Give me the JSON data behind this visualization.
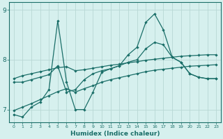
{
  "xlabel": "Humidex (Indice chaleur)",
  "bg_color": "#d6f0ee",
  "grid_color": "#b8d8d4",
  "line_color": "#1a6e68",
  "xlim": [
    -0.5,
    23.5
  ],
  "ylim": [
    6.75,
    9.15
  ],
  "yticks": [
    7,
    8,
    9
  ],
  "xticks": [
    0,
    1,
    2,
    3,
    4,
    5,
    6,
    7,
    8,
    9,
    10,
    11,
    12,
    13,
    14,
    15,
    16,
    17,
    18,
    19,
    20,
    21,
    22,
    23
  ],
  "series": [
    {
      "x": [
        0,
        1,
        2,
        3,
        4,
        5,
        6,
        7,
        8,
        9,
        10,
        11,
        12,
        13,
        14,
        15,
        16,
        17,
        18,
        19,
        20,
        21,
        22,
        23
      ],
      "y": [
        6.9,
        6.85,
        7.05,
        7.15,
        7.4,
        8.78,
        7.55,
        7.0,
        7.0,
        7.35,
        7.75,
        7.82,
        7.88,
        8.1,
        8.25,
        8.75,
        8.92,
        8.6,
        8.05,
        7.95,
        7.72,
        7.65,
        7.62,
        7.62
      ]
    },
    {
      "x": [
        0,
        1,
        2,
        3,
        4,
        5,
        6,
        7,
        8,
        9,
        10,
        11,
        12,
        13,
        14,
        15,
        16,
        17,
        18,
        19,
        20,
        21,
        22,
        23
      ],
      "y": [
        7.55,
        7.55,
        7.6,
        7.65,
        7.7,
        7.88,
        7.35,
        7.4,
        7.6,
        7.72,
        7.78,
        7.82,
        7.88,
        7.95,
        8.0,
        8.22,
        8.35,
        8.3,
        8.05,
        7.95,
        7.72,
        7.65,
        7.62,
        7.62
      ]
    },
    {
      "x": [
        0,
        1,
        2,
        3,
        4,
        5,
        6,
        7,
        8,
        9,
        10,
        11,
        12,
        13,
        14,
        15,
        16,
        17,
        18,
        19,
        20,
        21,
        22,
        23
      ],
      "y": [
        7.62,
        7.68,
        7.72,
        7.76,
        7.8,
        7.84,
        7.86,
        7.78,
        7.8,
        7.83,
        7.86,
        7.89,
        7.91,
        7.94,
        7.96,
        7.99,
        8.01,
        8.03,
        8.05,
        8.07,
        8.08,
        8.09,
        8.1,
        8.1
      ]
    },
    {
      "x": [
        0,
        1,
        2,
        3,
        4,
        5,
        6,
        7,
        8,
        9,
        10,
        11,
        12,
        13,
        14,
        15,
        16,
        17,
        18,
        19,
        20,
        21,
        22,
        23
      ],
      "y": [
        6.98,
        7.05,
        7.12,
        7.2,
        7.28,
        7.36,
        7.42,
        7.35,
        7.42,
        7.48,
        7.55,
        7.6,
        7.64,
        7.68,
        7.72,
        7.76,
        7.79,
        7.81,
        7.83,
        7.85,
        7.87,
        7.88,
        7.89,
        7.9
      ]
    }
  ]
}
